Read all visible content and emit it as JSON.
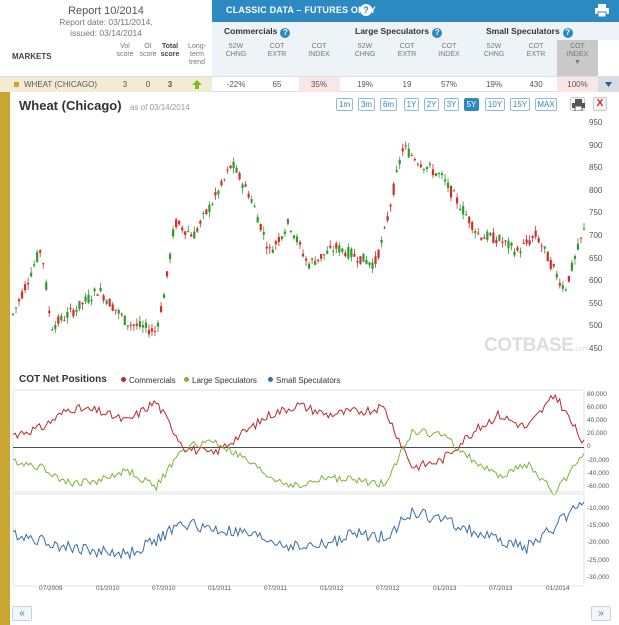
{
  "report": {
    "title": "Report 10/2014",
    "date": "Report date: 03/11/2014,",
    "issued": "issued: 03/14/2014"
  },
  "topbar": {
    "title": "CLASSIC DATA – FUTURES ONLY",
    "help": "?"
  },
  "groups": {
    "commercials": "Commercials",
    "large": "Large Speculators",
    "small": "Small Speculators",
    "help": "?"
  },
  "headers": {
    "markets": "MARKETS",
    "vol": "Vol score",
    "oi": "OI score",
    "total": "Total score",
    "trend": "Long-term trend",
    "chng_a": "52W",
    "chng_b": "CHNG",
    "extr_a": "COT",
    "extr_b": "EXTR",
    "index_a": "COT",
    "index_b": "INDEX"
  },
  "row": {
    "market": "WHEAT (CHICAGO)",
    "vol": "3",
    "oi": "0",
    "total": "3",
    "comm": {
      "chng": "-22%",
      "extr": "65",
      "index": "35%"
    },
    "large": {
      "chng": "19%",
      "extr": "19",
      "index": "57%"
    },
    "small": {
      "chng": "19%",
      "extr": "430",
      "index": "100%"
    }
  },
  "chart": {
    "title": "Wheat (Chicago)",
    "asof": "as of 03/14/2014",
    "ranges": [
      "1m",
      "3m",
      "6m",
      "1Y",
      "2Y",
      "3Y",
      "5Y",
      "10Y",
      "15Y",
      "MAX"
    ],
    "active_range": "5Y",
    "close": "X",
    "watermark_a": "COT",
    "watermark_b": "BASE",
    "watermark_c": ".com",
    "price_ticks": [
      "950",
      "900",
      "850",
      "800",
      "750",
      "700",
      "650",
      "600",
      "550",
      "500",
      "450"
    ],
    "cot_title": "COT Net Positions",
    "legend": [
      "Commercials",
      "Large Speculators",
      "Small Speculators"
    ],
    "net_ticks": [
      "80,000",
      "60,000",
      "40,000",
      "20,000",
      "0",
      "-20,000",
      "-40,000",
      "-60,000"
    ],
    "small_ticks": [
      "-10,000",
      "-15,000",
      "-20,000",
      "-25,000",
      "-30,000"
    ],
    "x_ticks": [
      "07/2009",
      "01/2010",
      "07/2010",
      "01/2011",
      "07/2011",
      "01/2012",
      "07/2012",
      "01/2013",
      "07/2013",
      "01/2014"
    ],
    "nav_prev": "«",
    "nav_next": "»",
    "colors": {
      "commercials": "#c0282d",
      "large": "#82b23a",
      "small": "#3a6ea8",
      "up": "#2e9a2e",
      "down": "#d42b2b"
    }
  },
  "chart_data": [
    {
      "type": "line",
      "title": "Wheat (Chicago)",
      "ylim": [
        420,
        960
      ],
      "x": [
        "2009-03",
        "2009-06",
        "2009-07",
        "2009-10",
        "2009-12",
        "2010-03",
        "2010-06",
        "2010-07",
        "2010-08",
        "2010-10",
        "2011-01",
        "2011-02",
        "2011-04",
        "2011-06",
        "2011-08",
        "2011-10",
        "2012-01",
        "2012-03",
        "2012-05",
        "2012-06",
        "2012-07",
        "2012-08",
        "2012-10",
        "2012-12",
        "2013-02",
        "2013-04",
        "2013-06",
        "2013-08",
        "2013-10",
        "2013-12",
        "2014-01",
        "2014-03"
      ],
      "series": [
        {
          "values": [
            500,
            660,
            470,
            520,
            560,
            480,
            460,
            560,
            720,
            690,
            810,
            860,
            780,
            650,
            720,
            620,
            660,
            640,
            620,
            690,
            800,
            900,
            860,
            830,
            760,
            690,
            680,
            650,
            690,
            600,
            560,
            700
          ]
        }
      ]
    },
    {
      "type": "line",
      "title": "COT Net Positions",
      "x": [
        "2009-03",
        "2009-06",
        "2009-09",
        "2009-12",
        "2010-03",
        "2010-06",
        "2010-09",
        "2010-12",
        "2011-03",
        "2011-06",
        "2011-09",
        "2011-12",
        "2012-03",
        "2012-06",
        "2012-09",
        "2012-12",
        "2013-03",
        "2013-06",
        "2013-09",
        "2013-12",
        "2014-03"
      ],
      "series": [
        {
          "name": "Commercials",
          "values": [
            20000,
            30000,
            60000,
            55000,
            40000,
            70000,
            0,
            -10000,
            20000,
            50000,
            65000,
            50000,
            55000,
            60000,
            -30000,
            -20000,
            20000,
            50000,
            30000,
            80000,
            5000
          ]
        },
        {
          "name": "Large Speculators",
          "values": [
            -20000,
            -30000,
            -55000,
            -50000,
            -35000,
            -60000,
            0,
            10000,
            -15000,
            -45000,
            -60000,
            -45000,
            -50000,
            -55000,
            25000,
            20000,
            -15000,
            -45000,
            -25000,
            -70000,
            -5000
          ]
        },
        {
          "name": "Small Speculators",
          "values": [
            -18000,
            -20000,
            -22000,
            -23000,
            -24000,
            -20000,
            -15000,
            -17000,
            -18000,
            -20000,
            -22000,
            -21000,
            -18000,
            -19000,
            -12000,
            -14000,
            -17000,
            -20000,
            -22000,
            -16000,
            -8000
          ]
        }
      ]
    }
  ]
}
